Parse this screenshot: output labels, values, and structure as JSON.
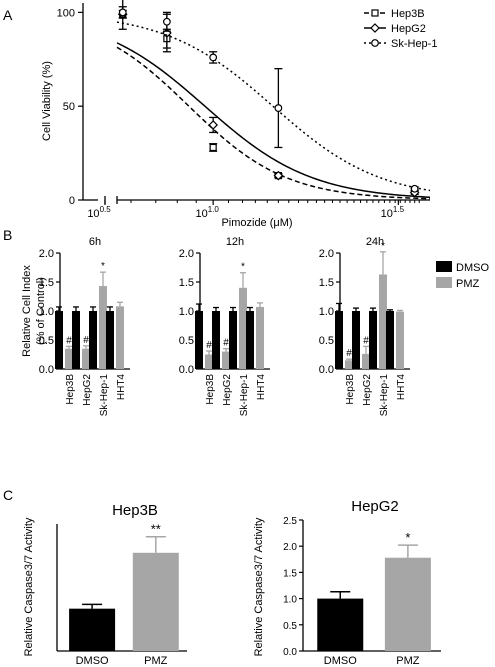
{
  "panel_labels": {
    "a": "A",
    "b": "B",
    "c": "C"
  },
  "legend_a": [
    {
      "name": "Hep3B",
      "style": "dashed",
      "marker": "square"
    },
    {
      "name": "HepG2",
      "style": "solid",
      "marker": "diamond"
    },
    {
      "name": "Sk-Hep-1",
      "style": "dotted",
      "marker": "circle"
    }
  ],
  "legend_b": [
    {
      "name": "DMSO",
      "color": "#000000"
    },
    {
      "name": "PMZ",
      "color": "#a6a6a6"
    }
  ],
  "chart_data": [
    {
      "id": "A",
      "type": "scatter",
      "xlabel": "Pimozide (μM)",
      "ylabel": "Cell Viability (%)",
      "x_scale": "log10",
      "xlim": [
        5.5,
        38.5
      ],
      "ylim": [
        0,
        105
      ],
      "x_ticks": [
        {
          "value": 3.162,
          "label_base": "10",
          "label_exp": "0.5"
        },
        {
          "value": 10,
          "label_base": "10",
          "label_exp": "1.0"
        },
        {
          "value": 31.62,
          "label_base": "10",
          "label_exp": "1.5"
        }
      ],
      "y_ticks": [
        0,
        50,
        100
      ],
      "series": [
        {
          "name": "Hep3B",
          "style": "dashed",
          "marker": "square",
          "x": [
            5.7,
            7.5,
            10,
            15,
            35
          ],
          "y": [
            99,
            86,
            28,
            13,
            5
          ],
          "err": [
            2,
            5,
            2,
            1,
            1
          ],
          "ic50": 8.6,
          "hill": 3.3
        },
        {
          "name": "HepG2",
          "style": "solid",
          "marker": "diamond",
          "x": [
            5.7,
            7.5,
            10,
            15,
            35
          ],
          "y": [
            99,
            89,
            40,
            13,
            4
          ],
          "err": [
            8,
            10,
            4,
            1,
            1
          ],
          "ic50": 9.5,
          "hill": 3.0
        },
        {
          "name": "Sk-Hep-1",
          "style": "dotted",
          "marker": "circle",
          "x": [
            5.7,
            7.5,
            10,
            15,
            35
          ],
          "y": [
            100,
            95,
            76,
            49,
            6
          ],
          "err": [
            3,
            5,
            3,
            21,
            1
          ],
          "ic50": 14.5,
          "hill": 3.0
        }
      ]
    },
    {
      "id": "B",
      "type": "bar",
      "ylabel": [
        "Relative Cell Index",
        "(% of Control)"
      ],
      "ylim": [
        0,
        2.0
      ],
      "y_ticks": [
        "0.0",
        "0.5",
        "1.0",
        "1.5",
        "2.0"
      ],
      "categories": [
        "Hep3B",
        "HepG2",
        "Sk-Hep-1",
        "HHT4"
      ],
      "panels": [
        {
          "title": "6h",
          "series": [
            {
              "name": "DMSO",
              "values": [
                1.0,
                1.0,
                1.0,
                1.0
              ],
              "err": [
                0.07,
                0.07,
                0.07,
                0.07
              ]
            },
            {
              "name": "PMZ",
              "values": [
                0.35,
                0.35,
                1.43,
                1.08
              ],
              "err": [
                0.04,
                0.05,
                0.24,
                0.07
              ]
            }
          ],
          "annotations": [
            "#",
            "#",
            "*",
            ""
          ]
        },
        {
          "title": "12h",
          "series": [
            {
              "name": "DMSO",
              "values": [
                1.0,
                1.0,
                1.0,
                1.0
              ],
              "err": [
                0.12,
                0.06,
                0.06,
                0.06
              ]
            },
            {
              "name": "PMZ",
              "values": [
                0.25,
                0.3,
                1.4,
                1.07
              ],
              "err": [
                0.06,
                0.05,
                0.26,
                0.07
              ]
            }
          ],
          "annotations": [
            "#",
            "#",
            "*",
            ""
          ]
        },
        {
          "title": "24h",
          "series": [
            {
              "name": "DMSO",
              "values": [
                1.0,
                1.0,
                1.0,
                1.0
              ],
              "err": [
                0.13,
                0.05,
                0.05,
                0.02
              ]
            },
            {
              "name": "PMZ",
              "values": [
                0.15,
                0.26,
                1.63,
                0.99
              ],
              "err": [
                0.02,
                0.13,
                0.39,
                0.02
              ]
            }
          ],
          "annotations": [
            "#",
            "#",
            "*",
            ""
          ]
        }
      ]
    },
    {
      "id": "C1",
      "type": "bar",
      "title": "Hep3B",
      "ylabel": "Relative Caspase3/7 Activity",
      "categories": [
        "DMSO",
        "PMZ"
      ],
      "values": [
        1.0,
        2.32
      ],
      "err": [
        0.1,
        0.38
      ],
      "colors": [
        "#000000",
        "#a6a6a6"
      ],
      "annotations": [
        "",
        "**"
      ],
      "ylim": [
        0,
        3.0
      ],
      "y_ticks": []
    },
    {
      "id": "C2",
      "type": "bar",
      "title": "HepG2",
      "ylabel": "Relative Caspase3/7 Activity",
      "categories": [
        "DMSO",
        "PMZ"
      ],
      "values": [
        1.0,
        1.78
      ],
      "err": [
        0.13,
        0.24
      ],
      "colors": [
        "#000000",
        "#a6a6a6"
      ],
      "annotations": [
        "",
        "*"
      ],
      "ylim": [
        0,
        2.5
      ],
      "y_ticks": [
        "0.0",
        "0.5",
        "1.0",
        "1.5",
        "2.0",
        "2.5"
      ]
    }
  ]
}
